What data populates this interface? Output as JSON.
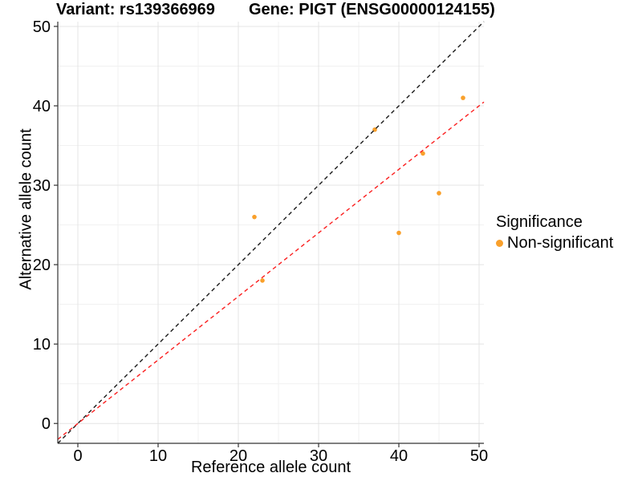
{
  "figure": {
    "title_left": "Variant: rs139366969",
    "title_right": "Gene: PIGT (ENSG00000124155)",
    "xlabel": "Reference allele count",
    "ylabel": "Alternative allele count"
  },
  "legend": {
    "title": "Significance",
    "items": [
      {
        "label": "Non-significant",
        "color": "#F9A02B"
      }
    ]
  },
  "colors": {
    "point": "#F9A02B",
    "identity_line": "#1A1A1A",
    "expected_line": "#FB1F1F",
    "axis": "#333333",
    "grid_major": "#E4E4E4",
    "grid_minor": "#F1F1F1",
    "text": "#000000"
  },
  "chart_data": {
    "type": "scatter",
    "title": "Variant: rs139366969 — Gene: PIGT (ENSG00000124155)",
    "xlabel": "Reference allele count",
    "ylabel": "Alternative allele count",
    "xlim": [
      -2.5,
      50.6
    ],
    "ylim": [
      -2.5,
      50.6
    ],
    "xticks": [
      0,
      10,
      20,
      30,
      40,
      50
    ],
    "yticks": [
      0,
      10,
      20,
      30,
      40,
      50
    ],
    "xticks_minor": [
      5,
      15,
      25,
      35,
      45
    ],
    "yticks_minor": [
      5,
      15,
      25,
      35,
      45
    ],
    "grid": true,
    "legend_position": "right",
    "series": [
      {
        "name": "Non-significant",
        "color": "#F9A02B",
        "points": [
          [
            22,
            26
          ],
          [
            23,
            18
          ],
          [
            37,
            37
          ],
          [
            40,
            24
          ],
          [
            43,
            34
          ],
          [
            45,
            29
          ],
          [
            48,
            41
          ]
        ]
      }
    ],
    "lines": [
      {
        "name": "identity y=x",
        "slope": 1.0,
        "intercept": 0,
        "color": "#1A1A1A",
        "style": "dashed"
      },
      {
        "name": "expected y=0.8x",
        "slope": 0.8,
        "intercept": 0,
        "color": "#FB1F1F",
        "style": "dashed"
      }
    ]
  }
}
